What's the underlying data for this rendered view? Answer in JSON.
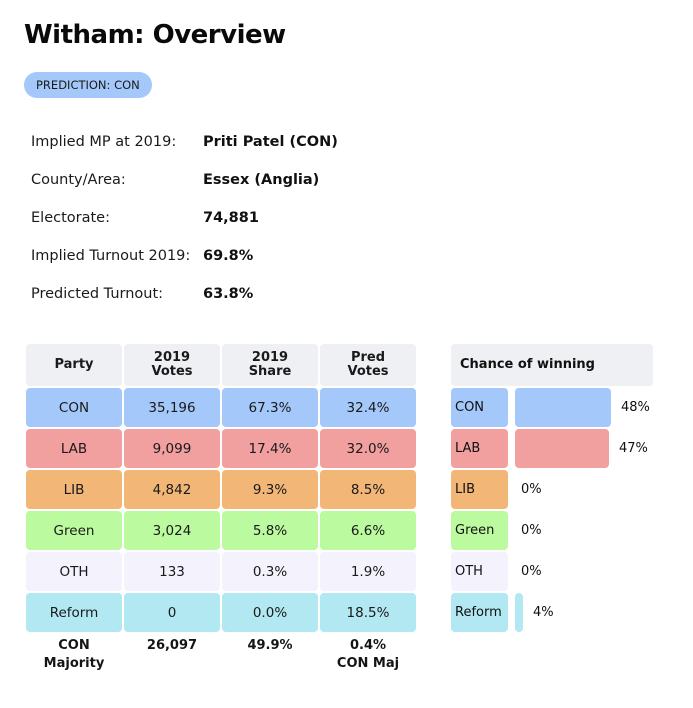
{
  "page": {
    "title": "Witham: Overview",
    "prediction_badge": "PREDICTION: CON"
  },
  "info": [
    {
      "label": "Implied MP at 2019:",
      "value": "Priti Patel  (CON)"
    },
    {
      "label": "County/Area:",
      "value": "Essex (Anglia)"
    },
    {
      "label": "Electorate:",
      "value": "74,881"
    },
    {
      "label": "Implied Turnout 2019:",
      "value": "69.8%"
    },
    {
      "label": "Predicted Turnout:",
      "value": "63.8%"
    }
  ],
  "results_table": {
    "headers": [
      "Party",
      "2019\nVotes",
      "2019\nShare",
      "Pred\nVotes"
    ],
    "rows": [
      {
        "party": "CON",
        "votes_2019": "35,196",
        "share_2019": "67.3%",
        "pred_votes": "32.4%",
        "color": "#a4c8fa"
      },
      {
        "party": "LAB",
        "votes_2019": "9,099",
        "share_2019": "17.4%",
        "pred_votes": "32.0%",
        "color": "#f19f9f"
      },
      {
        "party": "LIB",
        "votes_2019": "4,842",
        "share_2019": "9.3%",
        "pred_votes": "8.5%",
        "color": "#f2b676"
      },
      {
        "party": "Green",
        "votes_2019": "3,024",
        "share_2019": "5.8%",
        "pred_votes": "6.6%",
        "color": "#bcfa9f"
      },
      {
        "party": "OTH",
        "votes_2019": "133",
        "share_2019": "0.3%",
        "pred_votes": "1.9%",
        "color": "#f4f2fd"
      },
      {
        "party": "Reform",
        "votes_2019": "0",
        "share_2019": "0.0%",
        "pred_votes": "18.5%",
        "color": "#b1e8f2"
      }
    ],
    "footer": {
      "majority_label_line1": "CON",
      "majority_label_line2": "Majority",
      "majority_votes": "26,097",
      "majority_share": "49.9%",
      "pred_majority_line1": "0.4%",
      "pred_majority_line2": "CON Maj"
    }
  },
  "chance_of_winning": {
    "header": "Chance of winning",
    "rows": [
      {
        "party": "CON",
        "percent": 48,
        "label": "48%",
        "color": "#a4c8fa"
      },
      {
        "party": "LAB",
        "percent": 47,
        "label": "47%",
        "color": "#f19f9f"
      },
      {
        "party": "LIB",
        "percent": 0,
        "label": "0%",
        "color": "#f2b676"
      },
      {
        "party": "Green",
        "percent": 0,
        "label": "0%",
        "color": "#bcfa9f"
      },
      {
        "party": "OTH",
        "percent": 0,
        "label": "0%",
        "color": "#f4f2fd"
      },
      {
        "party": "Reform",
        "percent": 4,
        "label": "4%",
        "color": "#b1e8f2"
      }
    ]
  }
}
